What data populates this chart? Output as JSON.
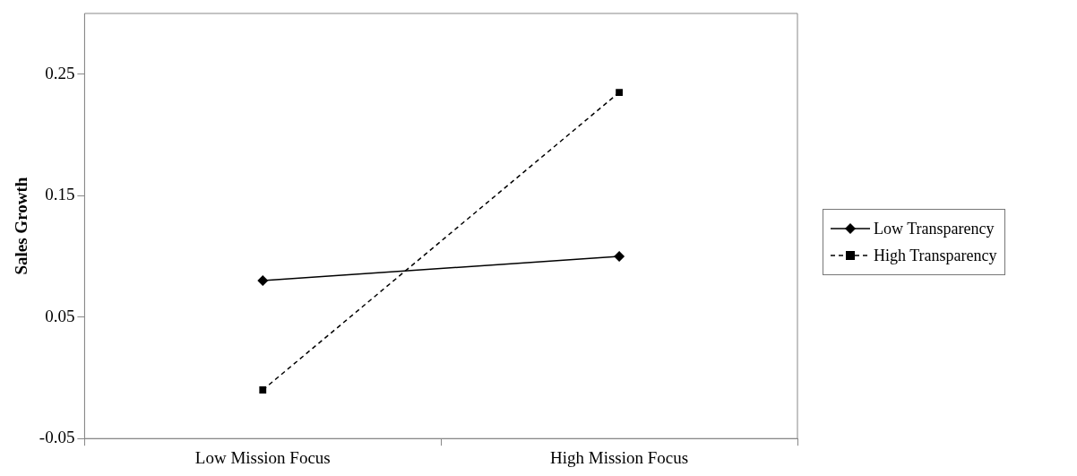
{
  "chart_data": {
    "type": "line",
    "ylabel": "Sales Growth",
    "categories": [
      "Low Mission Focus",
      "High Mission Focus"
    ],
    "series": [
      {
        "name": "Low Transparency",
        "color": "#000000",
        "values": [
          0.08,
          0.1
        ],
        "marker": "diamond",
        "line_style": "solid"
      },
      {
        "name": "High Transparency",
        "color": "#000000",
        "values": [
          -0.01,
          0.235
        ],
        "marker": "square",
        "line_style": "dashed"
      }
    ],
    "ylim": [
      -0.05,
      0.3
    ],
    "yticks": [
      -0.05,
      0.05,
      0.15,
      0.25
    ],
    "grid": false,
    "legend": "right"
  }
}
